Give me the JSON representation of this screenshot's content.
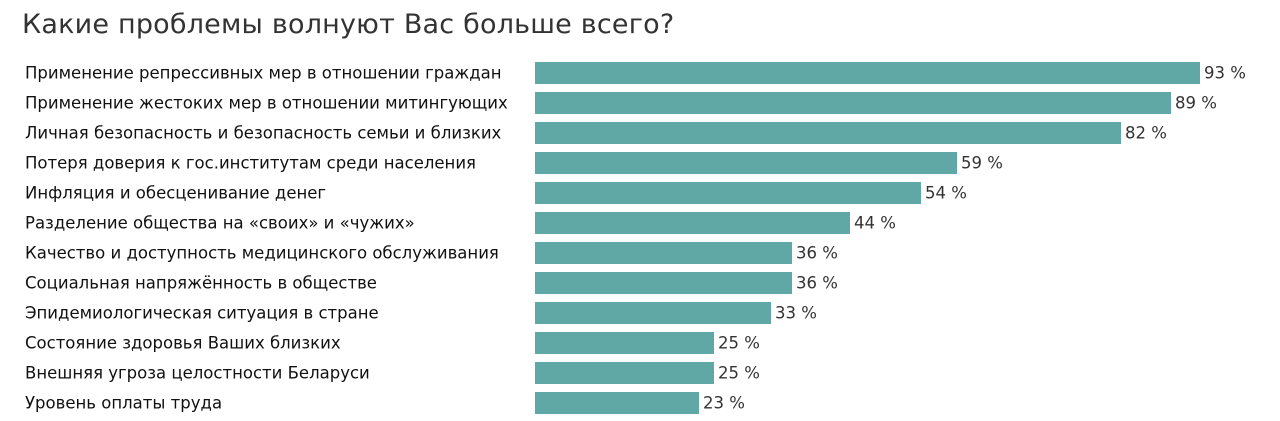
{
  "chart_data": {
    "type": "bar",
    "orientation": "horizontal",
    "title": "Какие проблемы волнуют Вас больше всего?",
    "categories": [
      "Применение репрессивных мер в отношении граждан",
      "Применение жестоких мер в отношении митингующих",
      "Личная безопасность и безопасность семьи и близких",
      "Потеря доверия к гос.институтам среди населения",
      "Инфляция и обесценивание денег",
      "Разделение общества на «своих» и «чужих»",
      "Качество и доступность медицинского обслуживания",
      "Социальная напряжённость в обществе",
      "Эпидемиологическая ситуация в стране",
      "Состояние здоровья Ваших близких",
      "Внешняя угроза целостности Беларуси",
      "Уровень оплаты труда"
    ],
    "values": [
      93,
      89,
      82,
      59,
      54,
      44,
      36,
      36,
      33,
      25,
      25,
      23
    ],
    "value_labels": [
      "93 %",
      "89 %",
      "82 %",
      "59 %",
      "54 %",
      "44 %",
      "36 %",
      "36 %",
      "33 %",
      "25 %",
      "25 %",
      "23 %"
    ],
    "xlim": [
      0,
      93
    ],
    "bar_color": "#5fa8a5",
    "grid": false,
    "legend": "none"
  }
}
